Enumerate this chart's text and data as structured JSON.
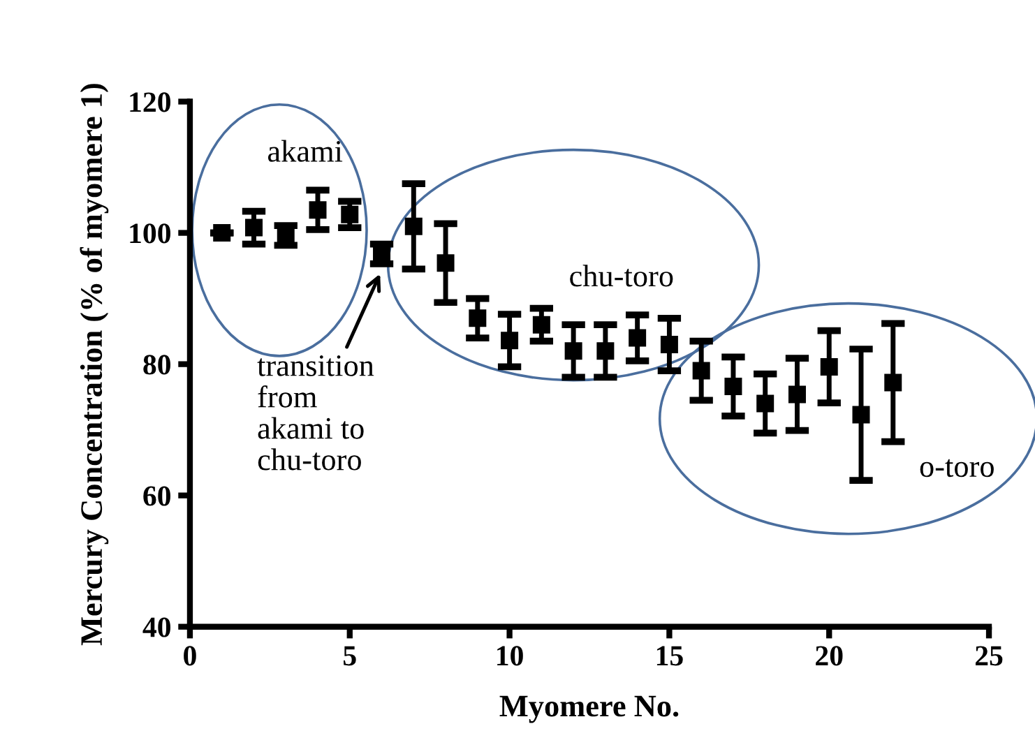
{
  "chart_data": {
    "type": "scatter",
    "xlabel": "Myomere No.",
    "ylabel": "Mercury Concentration (% of myomere 1)",
    "x": [
      1,
      2,
      3,
      4,
      5,
      6,
      7,
      8,
      9,
      10,
      11,
      12,
      13,
      14,
      15,
      16,
      17,
      18,
      19,
      20,
      21,
      22
    ],
    "values": [
      100,
      100.8,
      99.6,
      103.5,
      102.8,
      96.8,
      101,
      95.4,
      87,
      83.6,
      86,
      82,
      82,
      84,
      83,
      79,
      76.6,
      74,
      75.4,
      79.6,
      72.3,
      77.2
    ],
    "errors": [
      null,
      2.5,
      1.5,
      3,
      2,
      1.5,
      6.5,
      6,
      3,
      4,
      2.5,
      4,
      4,
      3.5,
      4,
      4.5,
      4.5,
      4.5,
      5.5,
      5.5,
      10,
      9
    ],
    "color": "#000000",
    "marker": "square",
    "xlim": [
      0,
      25
    ],
    "ylim": [
      40,
      120
    ],
    "xticks": [
      0,
      5,
      10,
      15,
      20,
      25
    ],
    "yticks": [
      40,
      60,
      80,
      100,
      120
    ],
    "grid": false,
    "legend": false,
    "annotations": [
      "akami",
      "chu-toro",
      "o-toro",
      "transition\nfrom\nakami to\nchu-toro"
    ]
  }
}
